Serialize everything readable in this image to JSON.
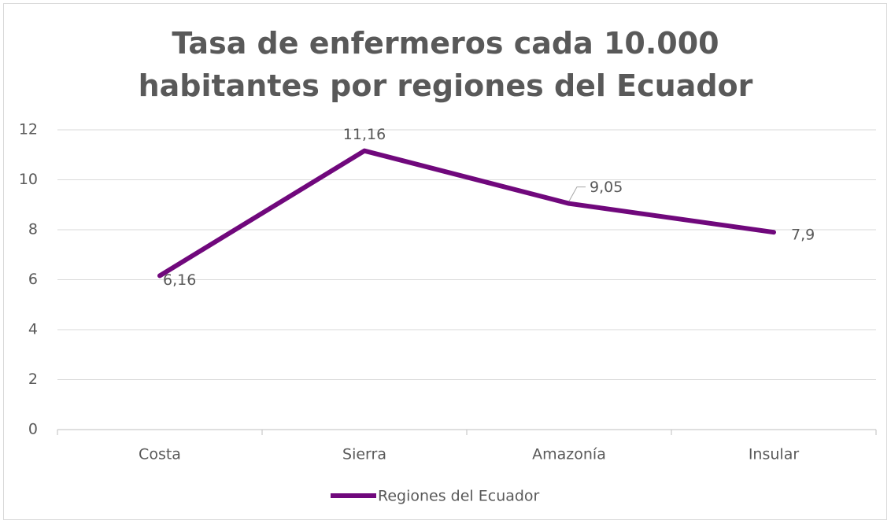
{
  "chart_data": {
    "type": "line",
    "title": "Tasa de enfermeros cada 10.000 habitantes por regiones del Ecuador",
    "categories": [
      "Costa",
      "Sierra",
      "Amazonía",
      "Insular"
    ],
    "series": [
      {
        "name": "Regiones del Ecuador",
        "color": "#70087c",
        "values": [
          6.16,
          11.16,
          9.05,
          7.9
        ],
        "value_labels": [
          "6,16",
          "11,16",
          "9,05",
          "7,9"
        ]
      }
    ],
    "ylim": [
      0,
      12
    ],
    "yticks": [
      0,
      2,
      4,
      6,
      8,
      10,
      12
    ],
    "grid": true,
    "legend": "bottom"
  }
}
